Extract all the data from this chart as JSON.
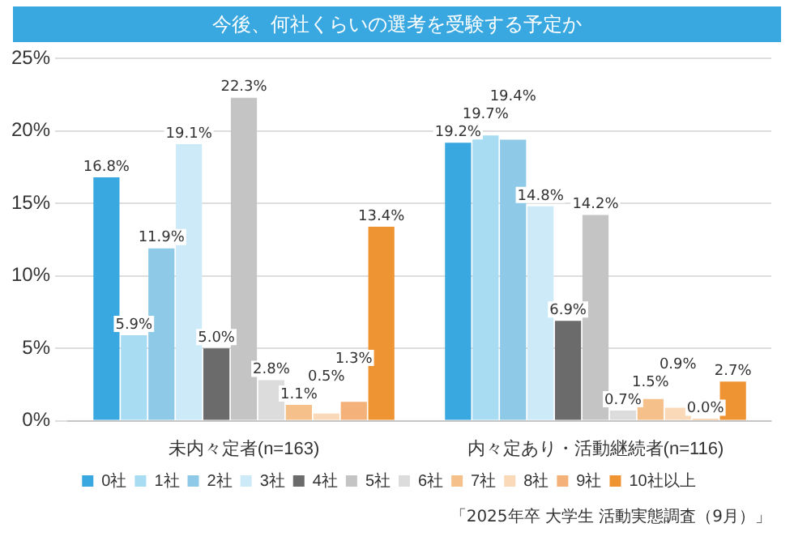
{
  "chart_data": {
    "type": "bar",
    "title": "今後、何社くらいの選考を受験する予定か",
    "categories": [
      "未内々定者(n=163)",
      "内々定あり・活動継続者(n=116)"
    ],
    "series": [
      {
        "name": "0社",
        "color": "#3aa8e0",
        "values": [
          16.8,
          19.2
        ],
        "value_labels": [
          "16.8%",
          "19.2%"
        ]
      },
      {
        "name": "1社",
        "color": "#a8dcf3",
        "values": [
          5.9,
          19.7
        ],
        "value_labels": [
          "5.9%",
          "19.7%"
        ]
      },
      {
        "name": "2社",
        "color": "#8fc9e8",
        "values": [
          11.9,
          19.4
        ],
        "value_labels": [
          "11.9%",
          "19.4%"
        ]
      },
      {
        "name": "3社",
        "color": "#cdeaf8",
        "values": [
          19.1,
          14.8
        ],
        "value_labels": [
          "19.1%",
          "14.8%"
        ]
      },
      {
        "name": "4社",
        "color": "#6b6b6b",
        "values": [
          5.0,
          6.9
        ],
        "value_labels": [
          "5.0%",
          "6.9%"
        ]
      },
      {
        "name": "5社",
        "color": "#c4c4c4",
        "values": [
          22.3,
          14.2
        ],
        "value_labels": [
          "22.3%",
          "14.2%"
        ]
      },
      {
        "name": "6社",
        "color": "#dcdcdc",
        "values": [
          2.8,
          0.7
        ],
        "value_labels": [
          "2.8%",
          "0.7%"
        ]
      },
      {
        "name": "7社",
        "color": "#f5c08a",
        "values": [
          1.1,
          1.5
        ],
        "value_labels": [
          "1.1%",
          "1.5%"
        ]
      },
      {
        "name": "8社",
        "color": "#f9d9b8",
        "values": [
          0.5,
          0.9
        ],
        "value_labels": [
          "0.5%",
          "0.9%"
        ]
      },
      {
        "name": "9社",
        "color": "#f4b27a",
        "values": [
          1.3,
          0.0
        ],
        "value_labels": [
          "1.3%",
          "0.0%"
        ]
      },
      {
        "name": "10社以上",
        "color": "#ef9433",
        "values": [
          13.4,
          2.7
        ],
        "value_labels": [
          "13.4%",
          "2.7%"
        ]
      }
    ],
    "ylim": [
      0,
      25
    ],
    "yticks": [
      {
        "value": 0,
        "label": "0%"
      },
      {
        "value": 5,
        "label": "5%"
      },
      {
        "value": 10,
        "label": "10%"
      },
      {
        "value": 15,
        "label": "15%"
      },
      {
        "value": 20,
        "label": "20%"
      },
      {
        "value": 25,
        "label": "25%"
      }
    ],
    "grid": "y",
    "legend": "bottom",
    "annotations": [
      "「2025年卒 大学生 活動実態調査（9月）」"
    ]
  }
}
